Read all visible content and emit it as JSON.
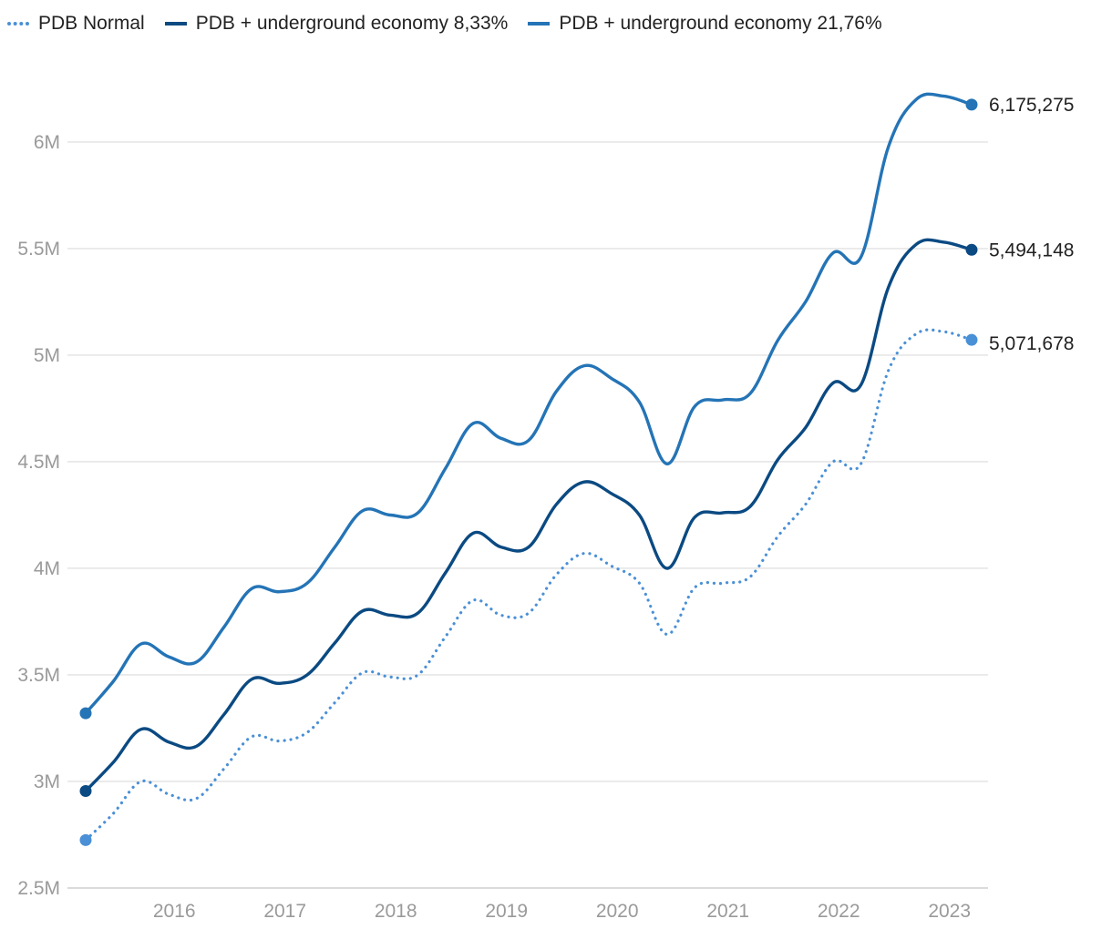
{
  "chart_data": {
    "type": "line",
    "title": "",
    "xlabel": "",
    "ylabel": "",
    "x": [
      2015.2,
      2015.45,
      2015.7,
      2015.95,
      2016.2,
      2016.45,
      2016.7,
      2016.95,
      2017.2,
      2017.45,
      2017.7,
      2017.95,
      2018.2,
      2018.45,
      2018.7,
      2018.95,
      2019.2,
      2019.45,
      2019.7,
      2019.95,
      2020.2,
      2020.45,
      2020.7,
      2020.95,
      2021.2,
      2021.45,
      2021.7,
      2021.95,
      2022.2,
      2022.45,
      2022.7,
      2022.95,
      2023.2
    ],
    "x_ticks": [
      2016,
      2017,
      2018,
      2019,
      2020,
      2021,
      2022,
      2023
    ],
    "x_tick_labels": [
      "2016",
      "2017",
      "2018",
      "2019",
      "2020",
      "2021",
      "2022",
      "2023"
    ],
    "xlim": [
      2015.2,
      2023.2
    ],
    "y_ticks": [
      2500000,
      3000000,
      3500000,
      4000000,
      4500000,
      5000000,
      5500000,
      6000000
    ],
    "y_tick_labels": [
      "2.5M",
      "3M",
      "3.5M",
      "4M",
      "4.5M",
      "5M",
      "5.5M",
      "6M"
    ],
    "ylim": [
      2500000,
      6350000
    ],
    "grid": true,
    "legend_position": "top",
    "series": [
      {
        "name": "PDB Normal",
        "color": "#4a90d6",
        "style": "dotted",
        "values": [
          2725000,
          2850000,
          3000000,
          2940000,
          2920000,
          3060000,
          3210000,
          3190000,
          3230000,
          3370000,
          3510000,
          3490000,
          3500000,
          3680000,
          3850000,
          3780000,
          3790000,
          3970000,
          4070000,
          4010000,
          3930000,
          3690000,
          3910000,
          3930000,
          3960000,
          4150000,
          4300000,
          4500000,
          4490000,
          4930000,
          5100000,
          5110000,
          5071678
        ],
        "end_label": "5,071,678"
      },
      {
        "name": "PDB + underground economy 8,33%",
        "color": "#0b4a82",
        "style": "solid",
        "values": [
          2955000,
          3090000,
          3245000,
          3185000,
          3165000,
          3315000,
          3480000,
          3460000,
          3500000,
          3650000,
          3800000,
          3780000,
          3790000,
          3980000,
          4165000,
          4100000,
          4100000,
          4300000,
          4405000,
          4350000,
          4250000,
          4000000,
          4240000,
          4260000,
          4290000,
          4510000,
          4660000,
          4870000,
          4860000,
          5320000,
          5520000,
          5530000,
          5494148
        ],
        "end_label": "5,494,148"
      },
      {
        "name": "PDB + underground economy 21,76%",
        "color": "#2474b6",
        "style": "solid",
        "values": [
          3320000,
          3470000,
          3645000,
          3585000,
          3560000,
          3725000,
          3905000,
          3890000,
          3930000,
          4100000,
          4270000,
          4250000,
          4260000,
          4470000,
          4680000,
          4610000,
          4600000,
          4830000,
          4950000,
          4890000,
          4780000,
          4490000,
          4760000,
          4790000,
          4820000,
          5070000,
          5250000,
          5480000,
          5460000,
          5980000,
          6200000,
          6215000,
          6175275
        ],
        "end_label": "6,175,275"
      }
    ]
  }
}
